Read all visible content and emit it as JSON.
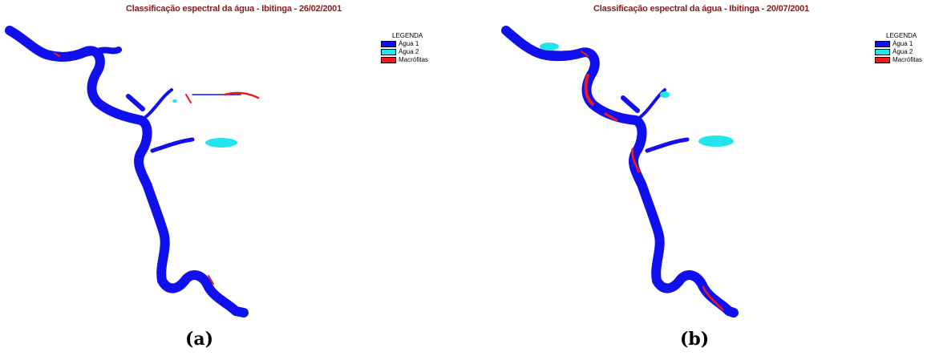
{
  "colors": {
    "agua1": "#1010ee",
    "agua2": "#22e4ec",
    "macrofitas": "#ee1a1a",
    "title": "#8b1a1a"
  },
  "panels": [
    {
      "id": "a",
      "title": "Classificação espectral da água - Ibitinga - 26/02/2001",
      "label": "(a)",
      "legend": {
        "title": "LEGENDA",
        "items": [
          {
            "label": "Água  1",
            "color": "#1010ee"
          },
          {
            "label": "Água  2",
            "color": "#22e4ec"
          },
          {
            "label": "Macrófitas",
            "color": "#ee1a1a"
          }
        ]
      }
    },
    {
      "id": "b",
      "title": "Classificação espectral da água - Ibitinga - 20/07/2001",
      "label": "(b)",
      "legend": {
        "title": "LEGENDA",
        "items": [
          {
            "label": "Água  1",
            "color": "#1010ee"
          },
          {
            "label": "Água  2",
            "color": "#22e4ec"
          },
          {
            "label": "Macrófitas",
            "color": "#ee1a1a"
          }
        ]
      }
    }
  ]
}
